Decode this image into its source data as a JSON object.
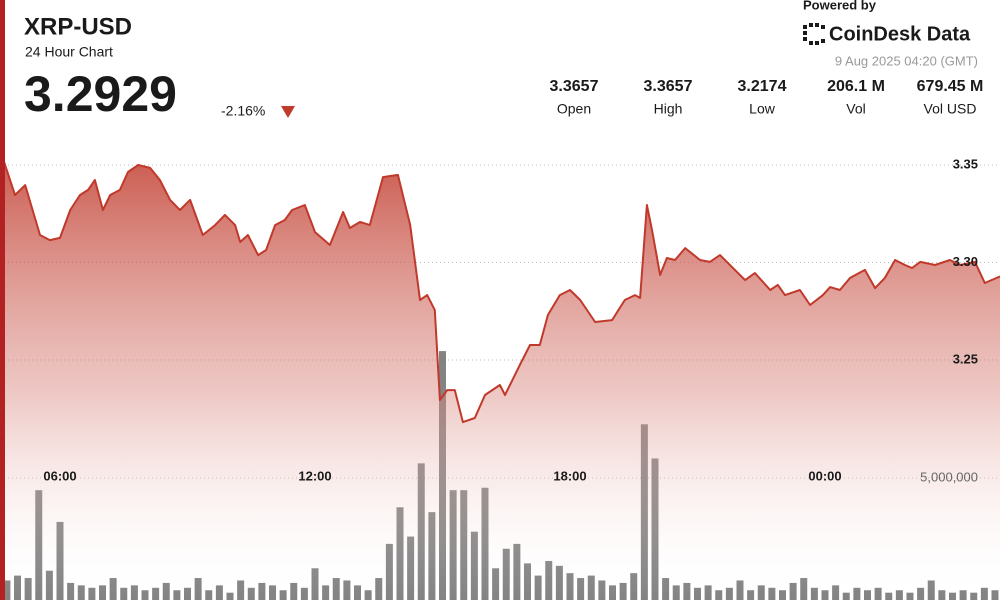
{
  "header": {
    "title": "XRP-USD",
    "subtitle": "24 Hour Chart",
    "price": "3.2929",
    "change": "-2.16%",
    "stats": [
      {
        "value": "3.3657",
        "label": "Open"
      },
      {
        "value": "3.3657",
        "label": "High"
      },
      {
        "value": "3.2174",
        "label": "Low"
      },
      {
        "value": "206.1 M",
        "label": "Vol"
      },
      {
        "value": "679.45 M",
        "label": "Vol USD"
      }
    ],
    "powered_by": "Powered by",
    "brand": "CoinDesk Data",
    "timestamp": "9 Aug 2025 04:20 (GMT)"
  },
  "chart_data": [
    {
      "type": "line",
      "color": "#c0392b",
      "xlim": [
        4.588,
        28.118
      ],
      "xticks": [
        {
          "value": 6,
          "label": "06:00"
        },
        {
          "value": 12,
          "label": "12:00"
        },
        {
          "value": 18,
          "label": "18:00"
        },
        {
          "value": 24,
          "label": "00:00"
        }
      ],
      "ylim": [
        3.127,
        3.3628
      ],
      "yticks": [
        3.25,
        {
          "value": 3.3,
          "label": "3.30"
        },
        3.35
      ],
      "grid": true,
      "x": [
        4.59,
        4.94,
        5.18,
        5.53,
        5.76,
        6.0,
        6.24,
        6.47,
        6.66,
        6.82,
        7.01,
        7.18,
        7.41,
        7.6,
        7.84,
        8.12,
        8.35,
        8.59,
        8.82,
        9.06,
        9.36,
        9.65,
        9.88,
        10.12,
        10.24,
        10.42,
        10.66,
        10.85,
        11.06,
        11.29,
        11.46,
        11.76,
        12.0,
        12.35,
        12.66,
        12.82,
        13.06,
        13.29,
        13.6,
        13.95,
        14.24,
        14.47,
        14.64,
        14.82,
        14.94,
        15.11,
        15.29,
        15.48,
        15.76,
        16.0,
        16.35,
        16.47,
        16.82,
        17.06,
        17.29,
        17.48,
        17.76,
        18.0,
        18.24,
        18.59,
        18.99,
        19.29,
        19.53,
        19.65,
        19.81,
        19.93,
        20.12,
        20.28,
        20.47,
        20.71,
        21.06,
        21.29,
        21.53,
        21.88,
        22.12,
        22.35,
        22.71,
        22.89,
        23.06,
        23.41,
        23.65,
        23.95,
        24.12,
        24.35,
        24.59,
        24.94,
        25.18,
        25.41,
        25.65,
        25.88,
        26.05,
        26.24,
        26.59,
        26.94,
        27.18,
        27.53,
        27.76,
        28.12
      ],
      "values": [
        3.3577,
        3.3346,
        3.3397,
        3.3141,
        3.3115,
        3.3126,
        3.3269,
        3.3346,
        3.3372,
        3.3423,
        3.3269,
        3.3346,
        3.3372,
        3.3464,
        3.35,
        3.3485,
        3.3423,
        3.3321,
        3.3269,
        3.3321,
        3.3141,
        3.3192,
        3.3244,
        3.3192,
        3.3105,
        3.3141,
        3.3038,
        3.3064,
        3.3192,
        3.3218,
        3.3269,
        3.3295,
        3.3156,
        3.309,
        3.3259,
        3.3177,
        3.3208,
        3.3192,
        3.3438,
        3.3449,
        3.3192,
        3.2808,
        3.2833,
        3.2756,
        3.2295,
        3.2346,
        3.2346,
        3.2182,
        3.2203,
        3.2321,
        3.2372,
        3.2321,
        3.2474,
        3.2577,
        3.2577,
        3.2731,
        3.2833,
        3.2859,
        3.2808,
        3.2695,
        3.2705,
        3.2808,
        3.2833,
        3.2818,
        3.3295,
        3.3167,
        3.2936,
        3.3023,
        3.3013,
        3.3074,
        3.3013,
        3.3003,
        3.3038,
        3.2962,
        3.291,
        3.2946,
        3.2859,
        3.2885,
        3.2833,
        3.2859,
        3.2782,
        3.2833,
        3.2874,
        3.2859,
        3.2921,
        3.2962,
        3.2869,
        3.2921,
        3.3013,
        3.2987,
        3.2972,
        3.3003,
        3.2987,
        3.3013,
        3.2987,
        3.3003,
        3.2895,
        3.2929
      ]
    },
    {
      "type": "bar",
      "color": "#5a5a5a",
      "ylim": [
        0,
        18850000
      ],
      "yticks": [
        {
          "value": 5000000,
          "label": "5,000,000"
        }
      ],
      "x": [
        4.75,
        5.0,
        5.25,
        5.5,
        5.75,
        6.0,
        6.25,
        6.5,
        6.75,
        7.0,
        7.25,
        7.5,
        7.75,
        8.0,
        8.25,
        8.5,
        8.75,
        9.0,
        9.25,
        9.5,
        9.75,
        10.0,
        10.25,
        10.5,
        10.75,
        11.0,
        11.25,
        11.5,
        11.75,
        12.0,
        12.25,
        12.5,
        12.75,
        13.0,
        13.25,
        13.5,
        13.75,
        14.0,
        14.25,
        14.5,
        14.75,
        15.0,
        15.25,
        15.5,
        15.75,
        16.0,
        16.25,
        16.5,
        16.75,
        17.0,
        17.25,
        17.5,
        17.75,
        18.0,
        18.25,
        18.5,
        18.75,
        19.0,
        19.25,
        19.5,
        19.75,
        20.0,
        20.25,
        20.5,
        20.75,
        21.0,
        21.25,
        21.5,
        21.75,
        22.0,
        22.25,
        22.5,
        22.75,
        23.0,
        23.25,
        23.5,
        23.75,
        24.0,
        24.25,
        24.5,
        24.75,
        25.0,
        25.25,
        25.5,
        25.75,
        26.0,
        26.25,
        26.5,
        26.75,
        27.0,
        27.25,
        27.5,
        27.75,
        28.0
      ],
      "values": [
        800000,
        1000000,
        900000,
        4500000,
        1200000,
        3200000,
        700000,
        600000,
        500000,
        600000,
        900000,
        500000,
        600000,
        400000,
        500000,
        700000,
        400000,
        500000,
        900000,
        400000,
        600000,
        300000,
        800000,
        500000,
        700000,
        600000,
        400000,
        700000,
        500000,
        1300000,
        600000,
        900000,
        800000,
        600000,
        400000,
        900000,
        2300000,
        3800000,
        2600000,
        5600000,
        3600000,
        10200000,
        4500000,
        4500000,
        2800000,
        4600000,
        1300000,
        2100000,
        2300000,
        1500000,
        1000000,
        1600000,
        1400000,
        1100000,
        900000,
        1000000,
        800000,
        600000,
        700000,
        1100000,
        7200000,
        5800000,
        900000,
        600000,
        700000,
        500000,
        600000,
        400000,
        500000,
        800000,
        400000,
        600000,
        500000,
        400000,
        700000,
        900000,
        500000,
        400000,
        600000,
        300000,
        500000,
        400000,
        500000,
        300000,
        400000,
        300000,
        500000,
        800000,
        400000,
        300000,
        400000,
        300000,
        500000,
        400000
      ]
    }
  ]
}
